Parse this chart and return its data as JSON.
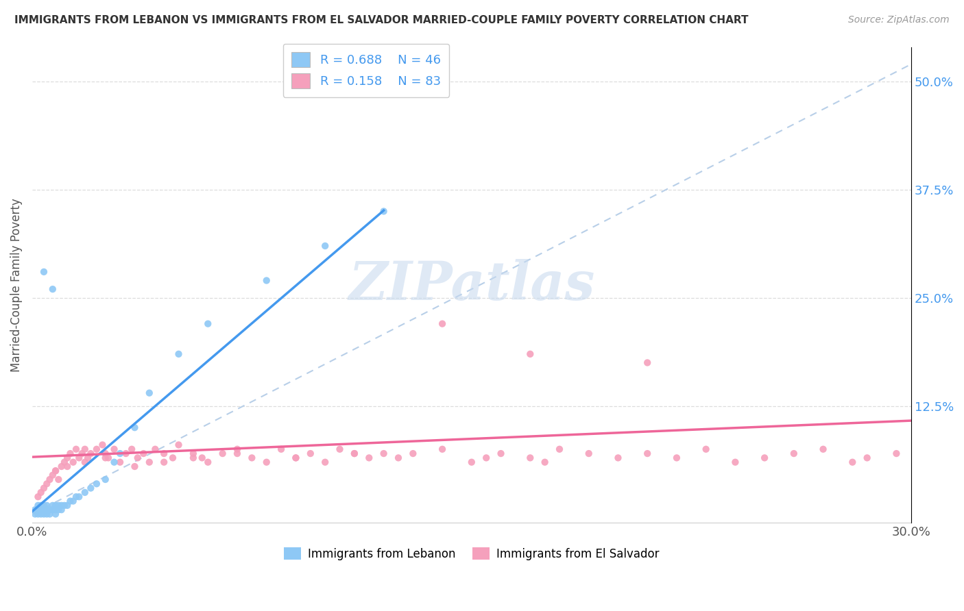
{
  "title": "IMMIGRANTS FROM LEBANON VS IMMIGRANTS FROM EL SALVADOR MARRIED-COUPLE FAMILY POVERTY CORRELATION CHART",
  "source": "Source: ZipAtlas.com",
  "ylabel": "Married-Couple Family Poverty",
  "ytick_labels": [
    "12.5%",
    "25.0%",
    "37.5%",
    "50.0%"
  ],
  "ytick_values": [
    0.125,
    0.25,
    0.375,
    0.5
  ],
  "xlim": [
    0.0,
    0.3
  ],
  "ylim": [
    -0.01,
    0.54
  ],
  "watermark": "ZIPatlas",
  "lebanon_color": "#8ec8f5",
  "elsalvador_color": "#f5a0bc",
  "lebanon_line_color": "#4499ee",
  "elsalvador_line_color": "#ee6699",
  "ref_line_color": "#b8cfe8",
  "legend_items": [
    {
      "label": "R = 0.688    N = 46",
      "color": "#8ec8f5"
    },
    {
      "label": "R = 0.158    N = 83",
      "color": "#f5a0bc"
    }
  ],
  "bottom_legend": [
    {
      "label": "Immigrants from Lebanon",
      "color": "#8ec8f5"
    },
    {
      "label": "Immigrants from El Salvador",
      "color": "#f5a0bc"
    }
  ],
  "leb_x": [
    0.001,
    0.001,
    0.002,
    0.002,
    0.002,
    0.003,
    0.003,
    0.003,
    0.004,
    0.004,
    0.004,
    0.005,
    0.005,
    0.005,
    0.006,
    0.006,
    0.007,
    0.007,
    0.008,
    0.008,
    0.008,
    0.009,
    0.009,
    0.01,
    0.01,
    0.011,
    0.012,
    0.013,
    0.014,
    0.015,
    0.016,
    0.018,
    0.02,
    0.022,
    0.025,
    0.028,
    0.03,
    0.035,
    0.04,
    0.05,
    0.06,
    0.08,
    0.1,
    0.12,
    0.004,
    0.007
  ],
  "leb_y": [
    0.0,
    0.005,
    0.0,
    0.005,
    0.01,
    0.0,
    0.005,
    0.01,
    0.0,
    0.005,
    0.01,
    0.0,
    0.005,
    0.01,
    0.0,
    0.005,
    0.005,
    0.01,
    0.0,
    0.005,
    0.01,
    0.005,
    0.01,
    0.005,
    0.01,
    0.01,
    0.01,
    0.015,
    0.015,
    0.02,
    0.02,
    0.025,
    0.03,
    0.035,
    0.04,
    0.06,
    0.07,
    0.1,
    0.14,
    0.185,
    0.22,
    0.27,
    0.31,
    0.35,
    0.28,
    0.26
  ],
  "sal_x": [
    0.002,
    0.003,
    0.004,
    0.005,
    0.006,
    0.007,
    0.008,
    0.009,
    0.01,
    0.011,
    0.012,
    0.013,
    0.014,
    0.015,
    0.016,
    0.017,
    0.018,
    0.019,
    0.02,
    0.022,
    0.024,
    0.025,
    0.026,
    0.028,
    0.03,
    0.032,
    0.034,
    0.036,
    0.038,
    0.04,
    0.042,
    0.045,
    0.048,
    0.05,
    0.055,
    0.058,
    0.06,
    0.065,
    0.07,
    0.075,
    0.08,
    0.085,
    0.09,
    0.095,
    0.1,
    0.105,
    0.11,
    0.115,
    0.12,
    0.125,
    0.13,
    0.14,
    0.15,
    0.155,
    0.16,
    0.17,
    0.175,
    0.18,
    0.19,
    0.2,
    0.21,
    0.22,
    0.23,
    0.24,
    0.25,
    0.26,
    0.27,
    0.28,
    0.285,
    0.295,
    0.008,
    0.012,
    0.018,
    0.025,
    0.035,
    0.045,
    0.055,
    0.07,
    0.09,
    0.11,
    0.14,
    0.17,
    0.21
  ],
  "sal_y": [
    0.02,
    0.025,
    0.03,
    0.035,
    0.04,
    0.045,
    0.05,
    0.04,
    0.055,
    0.06,
    0.065,
    0.07,
    0.06,
    0.075,
    0.065,
    0.07,
    0.075,
    0.065,
    0.07,
    0.075,
    0.08,
    0.07,
    0.065,
    0.075,
    0.06,
    0.07,
    0.075,
    0.065,
    0.07,
    0.06,
    0.075,
    0.07,
    0.065,
    0.08,
    0.07,
    0.065,
    0.06,
    0.07,
    0.075,
    0.065,
    0.06,
    0.075,
    0.065,
    0.07,
    0.06,
    0.075,
    0.07,
    0.065,
    0.07,
    0.065,
    0.07,
    0.075,
    0.06,
    0.065,
    0.07,
    0.065,
    0.06,
    0.075,
    0.07,
    0.065,
    0.07,
    0.065,
    0.075,
    0.06,
    0.065,
    0.07,
    0.075,
    0.06,
    0.065,
    0.07,
    0.05,
    0.055,
    0.06,
    0.065,
    0.055,
    0.06,
    0.065,
    0.07,
    0.065,
    0.07,
    0.22,
    0.185,
    0.175
  ]
}
